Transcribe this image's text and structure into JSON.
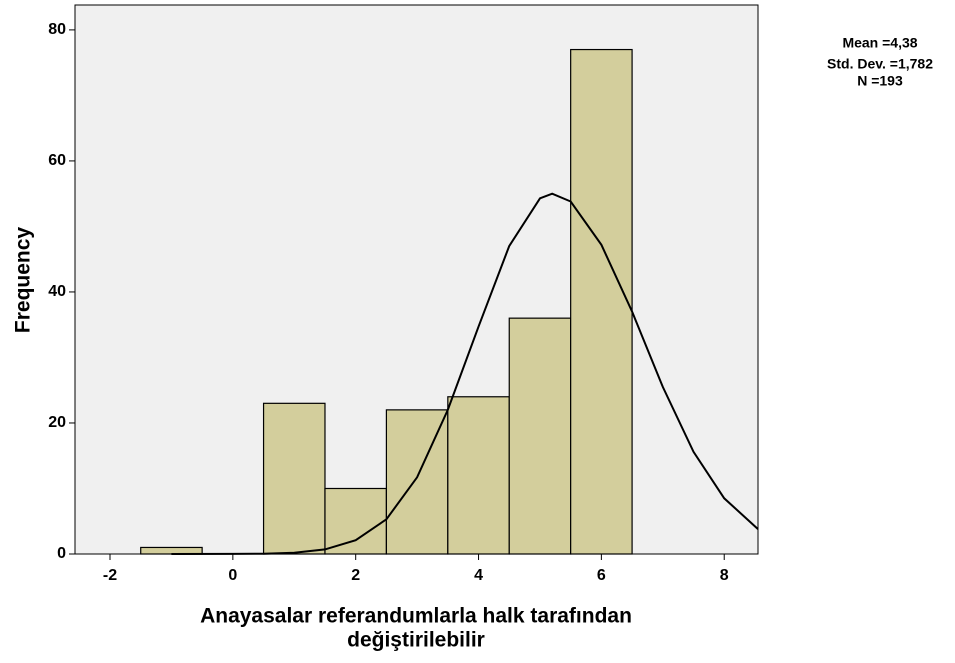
{
  "chart_data": {
    "type": "histogram",
    "bins": [
      -1.5,
      -0.5,
      0.5,
      1.5,
      2.5,
      3.5,
      4.5,
      5.5,
      6.5
    ],
    "values": [
      1,
      0,
      23,
      10,
      22,
      24,
      36,
      77
    ],
    "color": "#d3ce9c",
    "curve": {
      "x": [
        -1,
        0,
        0.5,
        1,
        1.5,
        2,
        2.5,
        3,
        3.5,
        4,
        4.5,
        5,
        5.2,
        5.5,
        6,
        6.5,
        7,
        7.5,
        8,
        8.55
      ],
      "values": [
        0,
        0.01,
        0.05,
        0.2,
        0.7,
        2.1,
        5.3,
        11.7,
        22,
        34.7,
        47,
        54.3,
        55,
        53.8,
        47.2,
        37,
        25.5,
        15.6,
        8.5,
        3.8
      ]
    },
    "xlim": [
      -2.57,
      8.55
    ],
    "ylim": [
      0,
      83.8
    ],
    "xticks": [
      -2,
      0,
      2,
      4,
      6,
      8
    ],
    "yticks": [
      0,
      20,
      40,
      60,
      80
    ],
    "xlabel": [
      "Anayasalar referandumlarla halk tarafından",
      "değiştirilebilir"
    ],
    "ylabel": "Frequency",
    "annotations": [
      "Mean =4,38",
      "Std. Dev. =1,782",
      "N =193"
    ]
  }
}
